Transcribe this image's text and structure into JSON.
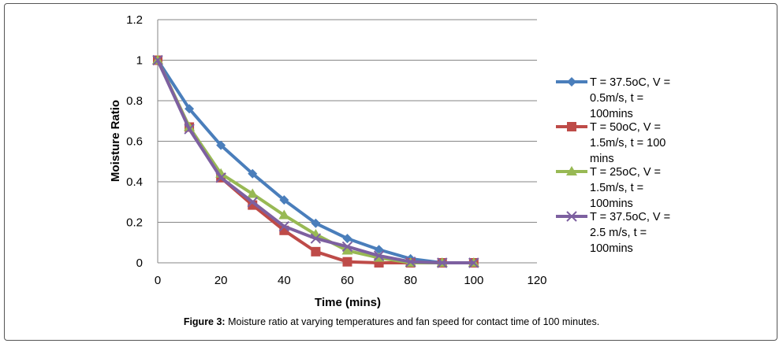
{
  "caption": {
    "label": "Figure 3:",
    "text": "Moisture ratio at varying temperatures and fan speed for contact time of 100 minutes."
  },
  "chart_data": {
    "type": "line",
    "title": "",
    "xlabel": "Time (mins)",
    "ylabel": "Moisture Ratio",
    "xlim": [
      0,
      120
    ],
    "ylim": [
      0,
      1.2
    ],
    "x_ticks": [
      "0",
      "20",
      "40",
      "60",
      "80",
      "100",
      "120"
    ],
    "y_ticks": [
      "0",
      "0.2",
      "0.4",
      "0.6",
      "0.8",
      "1",
      "1.2"
    ],
    "grid": "horizontal",
    "legend_position": "right",
    "series": [
      {
        "name_lines": [
          "T = 37.5oC, V =",
          "0.5m/s, t =",
          "100mins"
        ],
        "color": "#4a7ebb",
        "marker": "diamond",
        "x": [
          0,
          10,
          20,
          30,
          40,
          50,
          60,
          70,
          80,
          90,
          100
        ],
        "y": [
          1.0,
          0.76,
          0.58,
          0.44,
          0.31,
          0.195,
          0.12,
          0.065,
          0.02,
          0.0,
          0.0
        ]
      },
      {
        "name_lines": [
          "T = 50oC, V =",
          "1.5m/s, t = 100",
          "mins"
        ],
        "color": "#be4b48",
        "marker": "square",
        "x": [
          0,
          10,
          20,
          30,
          40,
          50,
          60,
          70,
          80,
          90,
          100
        ],
        "y": [
          1.0,
          0.67,
          0.42,
          0.285,
          0.16,
          0.055,
          0.005,
          0.0,
          0.0,
          0.0,
          0.0
        ]
      },
      {
        "name_lines": [
          "T = 25oC, V =",
          "1.5m/s, t =",
          "100mins"
        ],
        "color": "#98b954",
        "marker": "triangle",
        "x": [
          0,
          10,
          20,
          30,
          40,
          50,
          60,
          70,
          80,
          90,
          100
        ],
        "y": [
          1.0,
          0.67,
          0.44,
          0.34,
          0.235,
          0.14,
          0.06,
          0.025,
          0.0,
          0.0,
          0.0
        ]
      },
      {
        "name_lines": [
          "T = 37.5oC, V =",
          "2.5 m/s, t =",
          "100mins"
        ],
        "color": "#7d60a0",
        "marker": "x",
        "x": [
          0,
          10,
          20,
          30,
          40,
          50,
          60,
          70,
          80,
          90,
          100
        ],
        "y": [
          1.0,
          0.66,
          0.42,
          0.3,
          0.18,
          0.12,
          0.08,
          0.035,
          0.005,
          0.0,
          0.0
        ]
      }
    ]
  }
}
